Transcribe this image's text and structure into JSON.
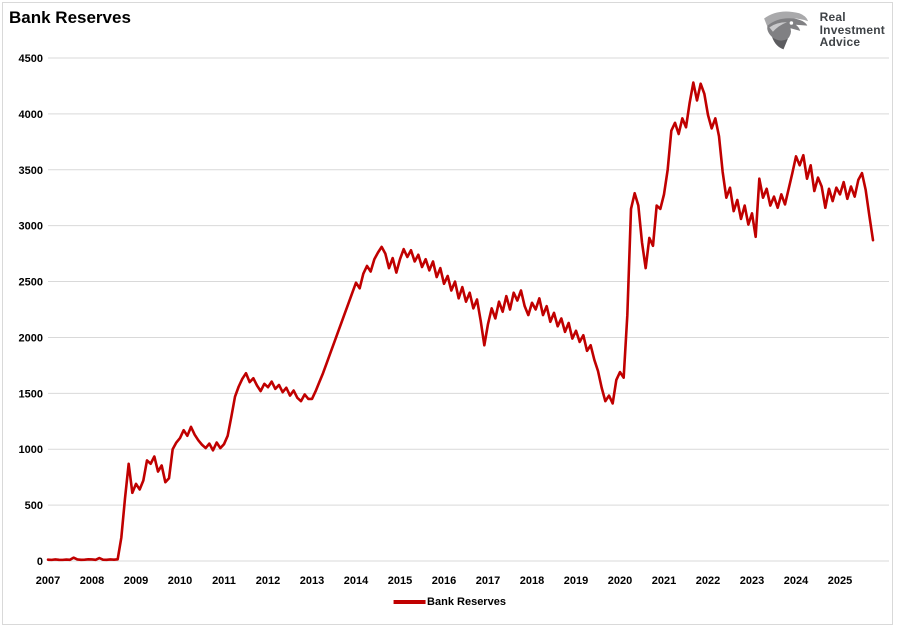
{
  "header": {
    "title": "Bank Reserves",
    "logo": {
      "icon": "eagle-icon",
      "lines": [
        "Real",
        "Investment",
        "Advice"
      ]
    }
  },
  "legend": {
    "label": "Bank Reserves"
  },
  "colors": {
    "series": "#C00000",
    "gridline": "#D9D9D9",
    "axis_text": "#000000",
    "border": "#D9D9D9"
  },
  "chart_data": {
    "type": "line",
    "title": "Bank Reserves",
    "xlabel": "",
    "ylabel": "",
    "ylim": [
      0,
      4500
    ],
    "y_ticks": [
      0,
      500,
      1000,
      1500,
      2000,
      2500,
      3000,
      3500,
      4000,
      4500
    ],
    "x_ticks": [
      2007,
      2008,
      2009,
      2010,
      2011,
      2012,
      2013,
      2014,
      2015,
      2016,
      2017,
      2018,
      2019,
      2020,
      2021,
      2022,
      2023,
      2024,
      2025
    ],
    "grid": "horizontal-major-only",
    "legend_position": "bottom-center",
    "series": [
      {
        "name": "Bank Reserves",
        "color": "#C00000",
        "start": "2007-01",
        "frequency": "monthly",
        "units": "billions USD",
        "values": [
          12,
          10,
          14,
          11,
          10,
          13,
          11,
          30,
          14,
          11,
          12,
          15,
          14,
          11,
          26,
          12,
          11,
          14,
          12,
          15,
          210,
          560,
          870,
          610,
          690,
          640,
          720,
          900,
          870,
          935,
          800,
          855,
          705,
          740,
          1000,
          1060,
          1100,
          1170,
          1120,
          1200,
          1130,
          1080,
          1040,
          1010,
          1050,
          990,
          1060,
          1010,
          1045,
          1120,
          1290,
          1470,
          1560,
          1630,
          1680,
          1600,
          1635,
          1570,
          1520,
          1585,
          1555,
          1605,
          1540,
          1575,
          1510,
          1550,
          1480,
          1525,
          1460,
          1430,
          1490,
          1450,
          1450,
          1520,
          1600,
          1680,
          1770,
          1860,
          1950,
          2040,
          2130,
          2220,
          2310,
          2400,
          2490,
          2440,
          2570,
          2640,
          2590,
          2700,
          2760,
          2810,
          2750,
          2620,
          2710,
          2580,
          2700,
          2790,
          2720,
          2780,
          2680,
          2740,
          2630,
          2700,
          2600,
          2680,
          2540,
          2620,
          2480,
          2550,
          2420,
          2500,
          2350,
          2450,
          2320,
          2400,
          2260,
          2340,
          2150,
          1930,
          2120,
          2260,
          2170,
          2320,
          2230,
          2370,
          2250,
          2400,
          2330,
          2420,
          2280,
          2200,
          2310,
          2250,
          2350,
          2200,
          2280,
          2140,
          2220,
          2100,
          2170,
          2050,
          2130,
          1990,
          2060,
          1960,
          2020,
          1880,
          1930,
          1800,
          1700,
          1550,
          1430,
          1480,
          1410,
          1620,
          1690,
          1640,
          2200,
          3150,
          3290,
          3180,
          2850,
          2620,
          2890,
          2820,
          3180,
          3150,
          3280,
          3500,
          3850,
          3920,
          3820,
          3960,
          3880,
          4100,
          4280,
          4120,
          4270,
          4180,
          3990,
          3870,
          3960,
          3800,
          3480,
          3250,
          3340,
          3130,
          3230,
          3060,
          3180,
          3010,
          3110,
          2900,
          3420,
          3250,
          3330,
          3180,
          3260,
          3160,
          3280,
          3190,
          3330,
          3470,
          3620,
          3540,
          3630,
          3420,
          3540,
          3310,
          3430,
          3350,
          3160,
          3330,
          3220,
          3340,
          3280,
          3390,
          3240,
          3350,
          3260,
          3410,
          3470,
          3320,
          3090,
          2870
        ]
      }
    ]
  }
}
